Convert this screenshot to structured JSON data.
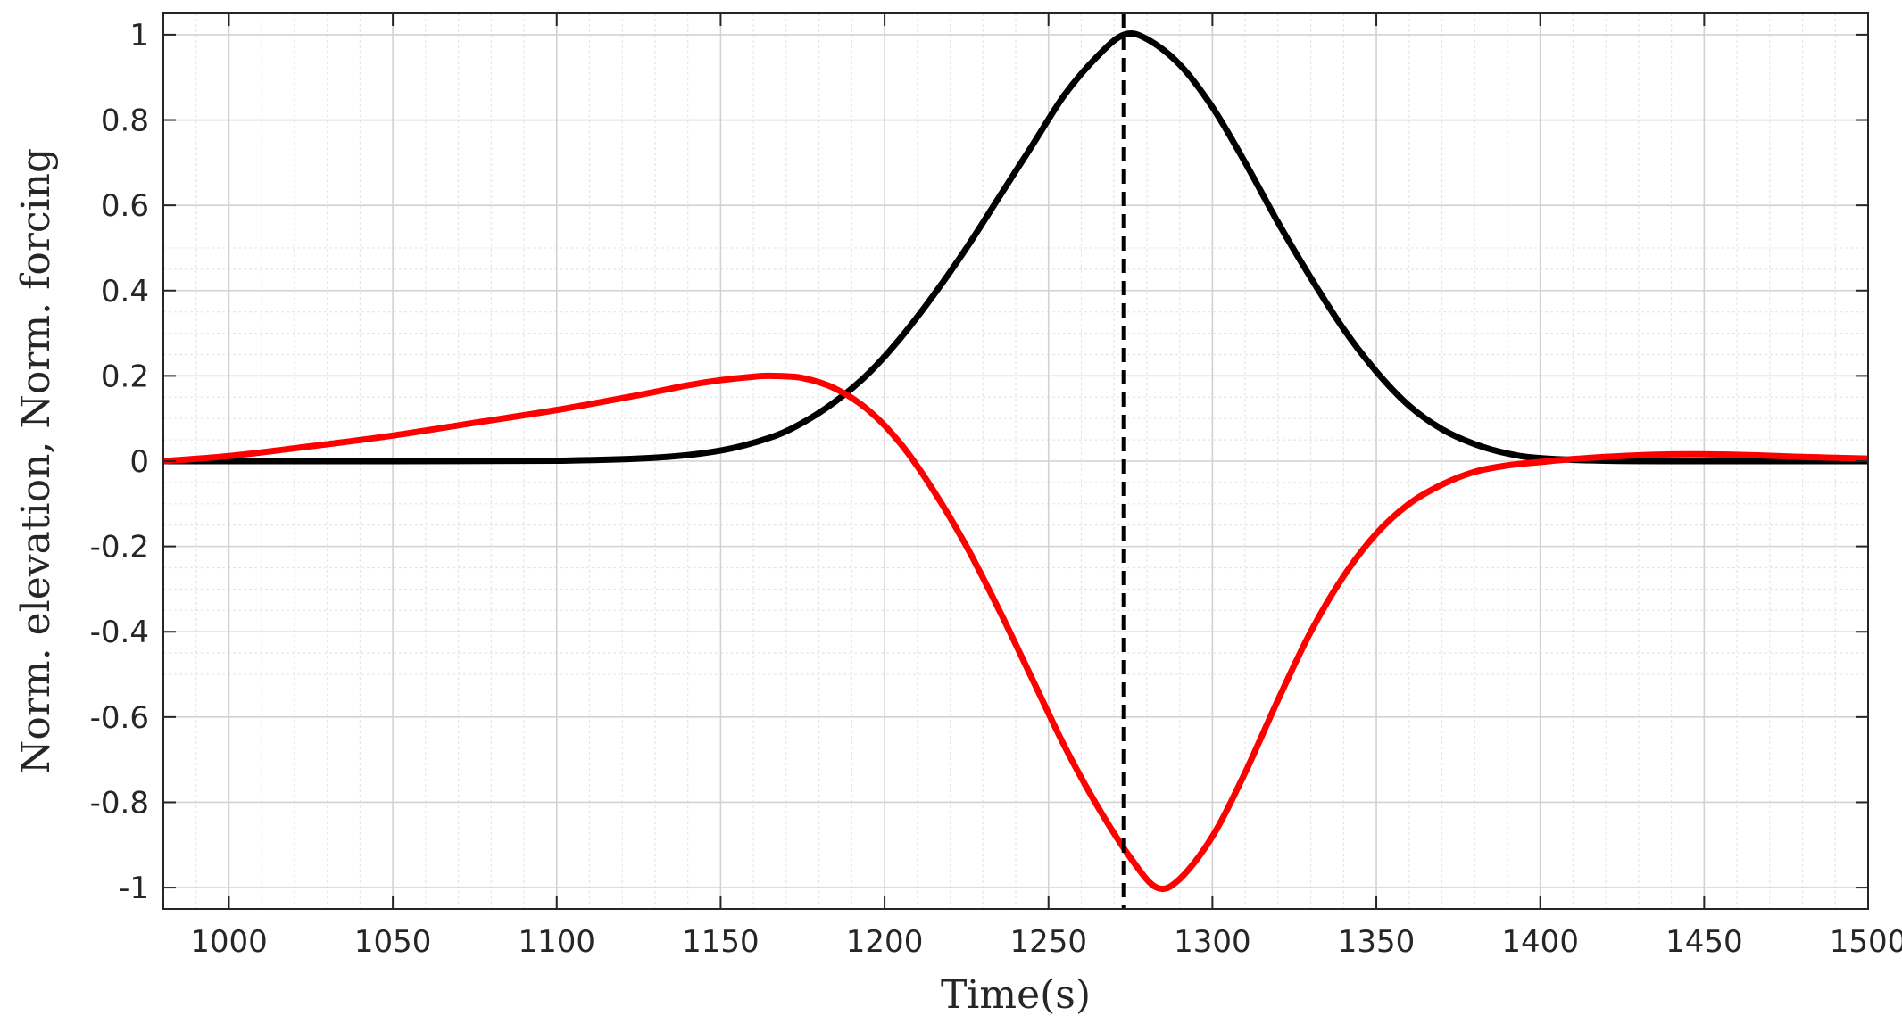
{
  "chart_data": {
    "type": "line",
    "title": "",
    "xlabel": "Time(s)",
    "ylabel": "Norm. elevation, Norm. forcing",
    "xlim": [
      980,
      1500
    ],
    "ylim": [
      -1.05,
      1.05
    ],
    "xticks": [
      1000,
      1050,
      1100,
      1150,
      1200,
      1250,
      1300,
      1350,
      1400,
      1450,
      1500
    ],
    "yticks": [
      -1,
      -0.8,
      -0.6,
      -0.4,
      -0.2,
      0,
      0.2,
      0.4,
      0.6,
      0.8,
      1
    ],
    "xtick_labels": [
      "1000",
      "1050",
      "1100",
      "1150",
      "1200",
      "1250",
      "1300",
      "1350",
      "1400",
      "1450",
      "1500"
    ],
    "ytick_labels": [
      "-1",
      "-0.8",
      "-0.6",
      "-0.4",
      "-0.2",
      "0",
      "0.2",
      "0.4",
      "0.6",
      "0.8",
      "1"
    ],
    "grid": true,
    "minor_grid": true,
    "series": [
      {
        "color": "#000000",
        "style": "solid",
        "x": [
          980,
          1050,
          1100,
          1130,
          1150,
          1165,
          1175,
          1185,
          1195,
          1205,
          1215,
          1225,
          1235,
          1245,
          1255,
          1265,
          1273,
          1280,
          1290,
          1300,
          1310,
          1320,
          1330,
          1340,
          1350,
          1360,
          1370,
          1380,
          1390,
          1400,
          1420,
          1450,
          1500
        ],
        "y": [
          0.0,
          0.0,
          0.001,
          0.008,
          0.025,
          0.055,
          0.09,
          0.14,
          0.205,
          0.29,
          0.39,
          0.5,
          0.62,
          0.74,
          0.86,
          0.95,
          1.0,
          0.99,
          0.93,
          0.83,
          0.7,
          0.56,
          0.43,
          0.31,
          0.21,
          0.13,
          0.075,
          0.04,
          0.018,
          0.007,
          0.001,
          0.0,
          0.0
        ]
      },
      {
        "color": "#ff0000",
        "style": "solid",
        "x": [
          980,
          1000,
          1025,
          1050,
          1075,
          1100,
          1125,
          1140,
          1150,
          1160,
          1165,
          1175,
          1185,
          1195,
          1205,
          1215,
          1225,
          1235,
          1245,
          1255,
          1265,
          1275,
          1283,
          1290,
          1300,
          1310,
          1320,
          1330,
          1340,
          1350,
          1360,
          1370,
          1380,
          1390,
          1400,
          1410,
          1425,
          1440,
          1460,
          1480,
          1500
        ],
        "y": [
          0.0,
          0.012,
          0.035,
          0.06,
          0.09,
          0.12,
          0.155,
          0.178,
          0.19,
          0.198,
          0.2,
          0.195,
          0.17,
          0.12,
          0.04,
          -0.07,
          -0.2,
          -0.35,
          -0.51,
          -0.67,
          -0.81,
          -0.93,
          -1.0,
          -0.98,
          -0.88,
          -0.73,
          -0.56,
          -0.4,
          -0.27,
          -0.17,
          -0.1,
          -0.055,
          -0.025,
          -0.01,
          -0.002,
          0.005,
          0.012,
          0.016,
          0.015,
          0.01,
          0.006
        ]
      }
    ],
    "vlines": [
      {
        "x": 1273,
        "color": "#000000",
        "style": "dashed"
      }
    ]
  }
}
